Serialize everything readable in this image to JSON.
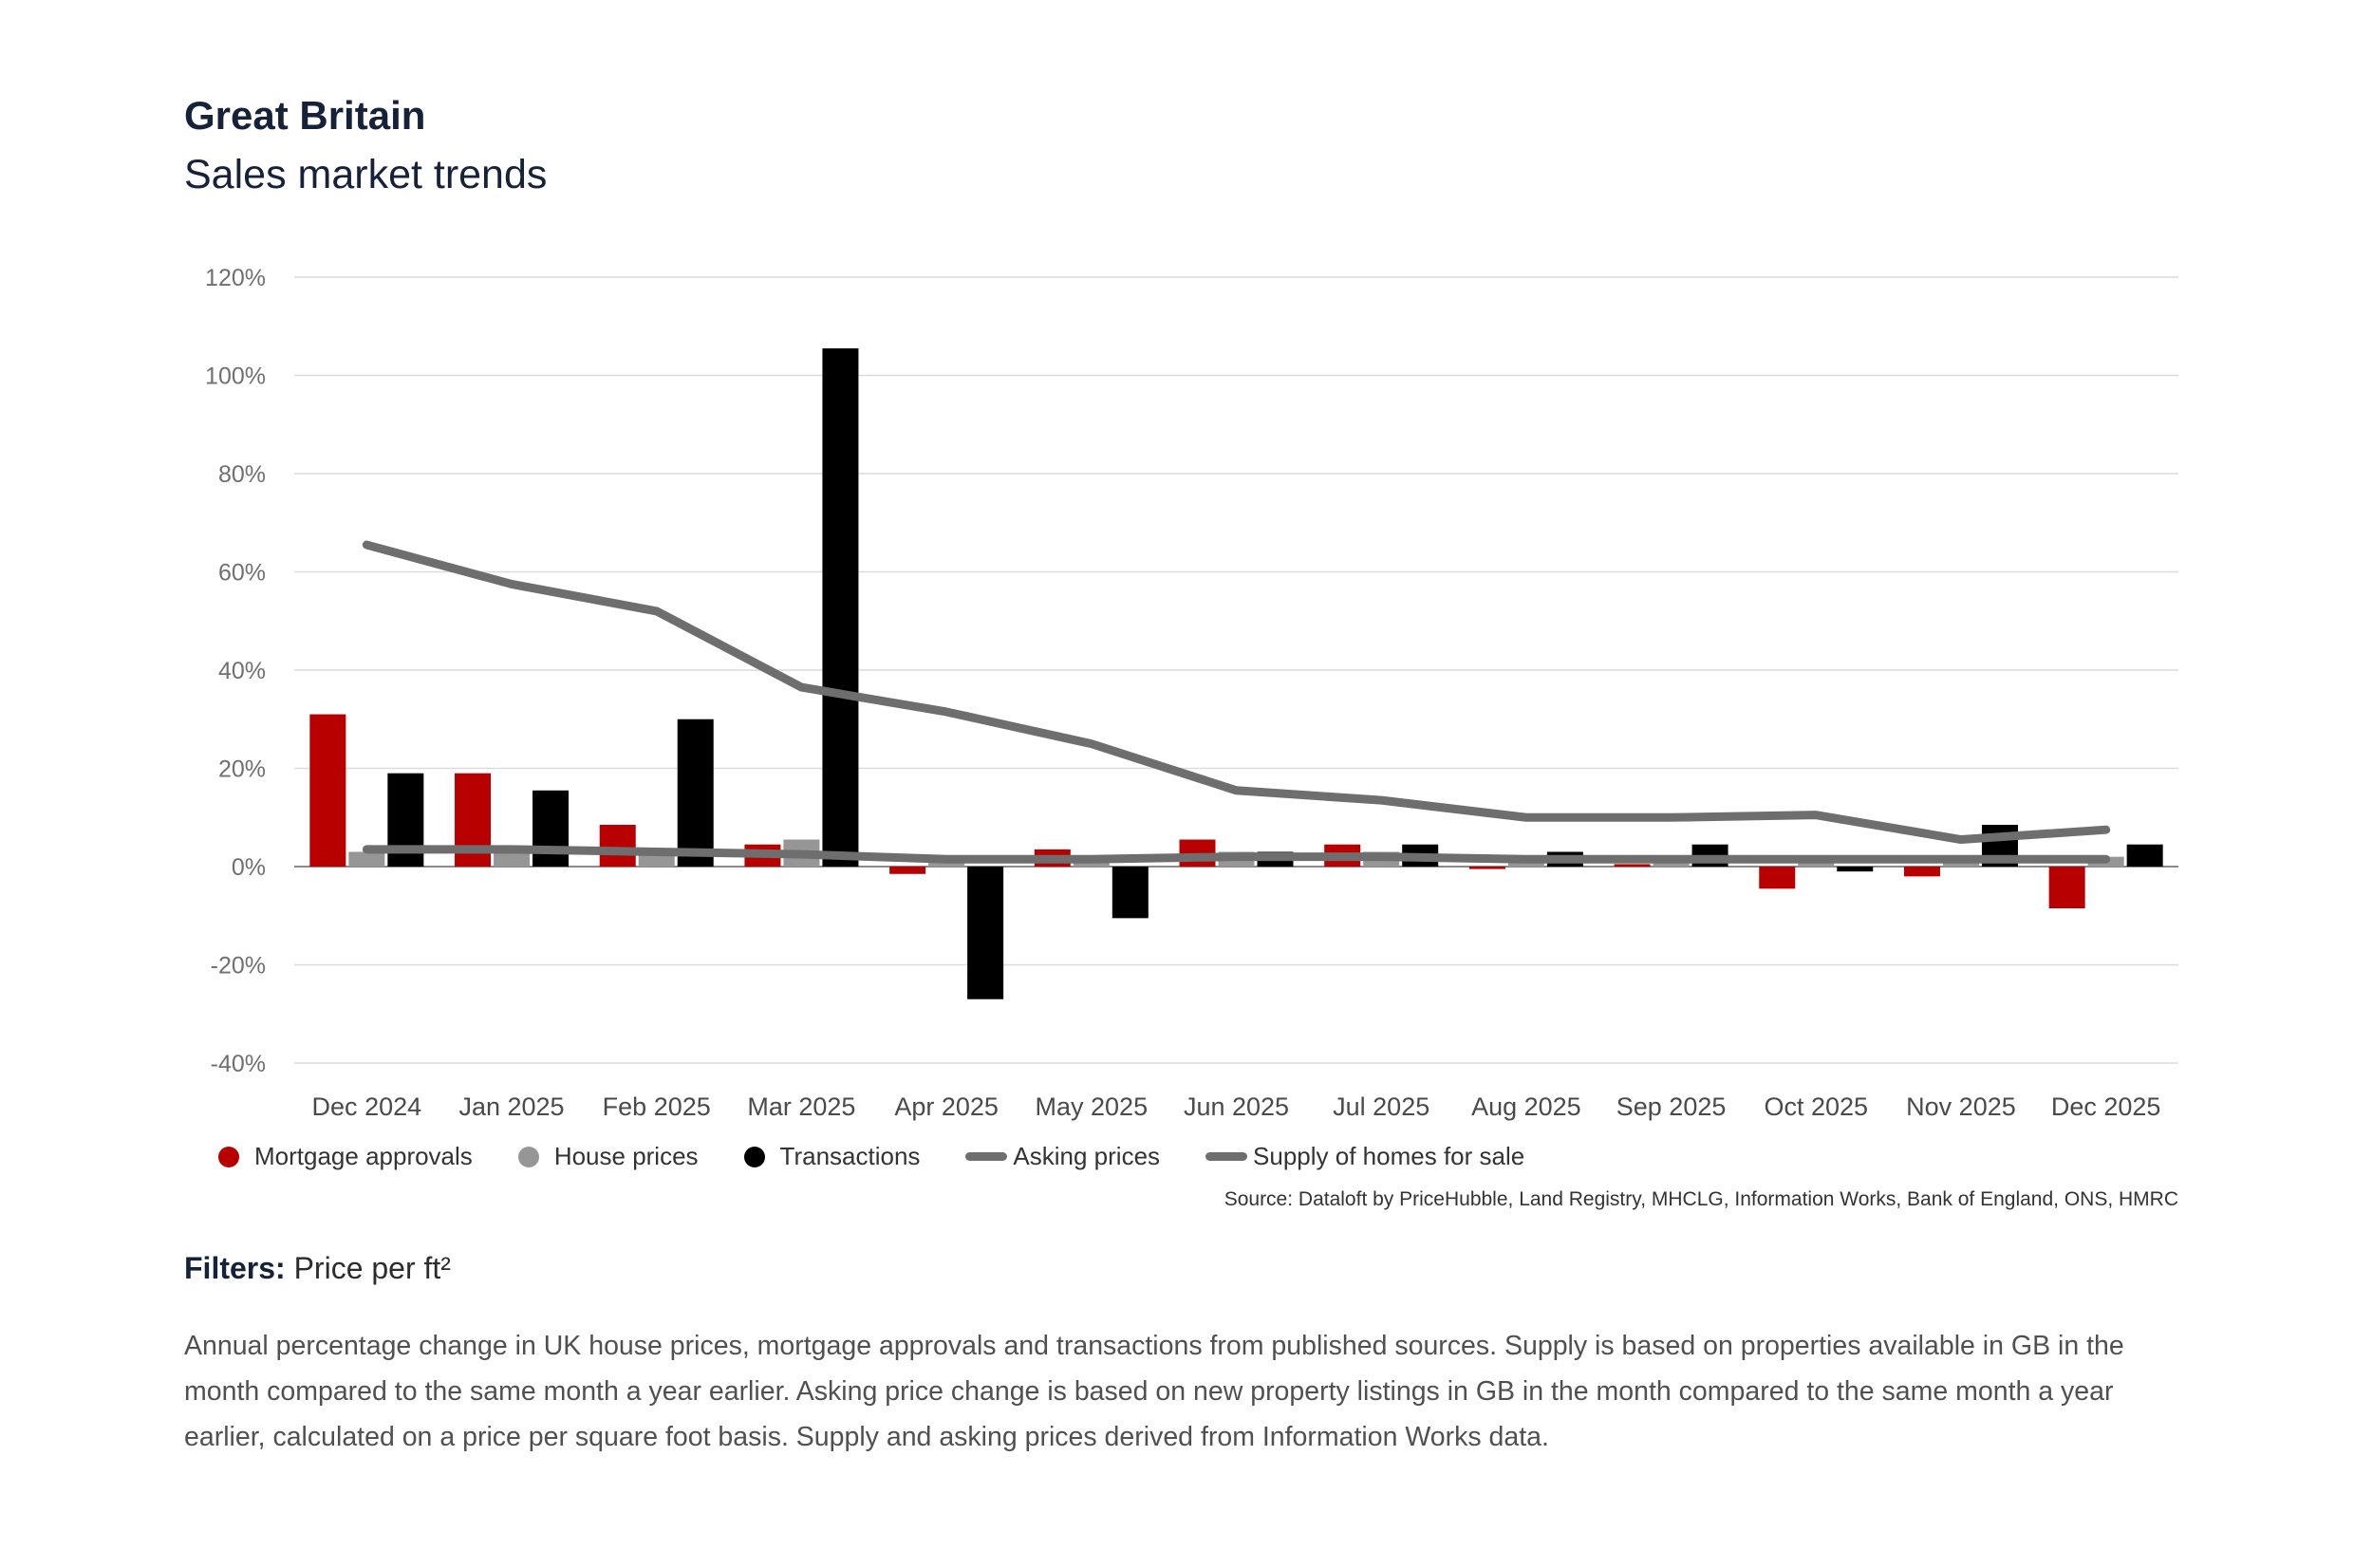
{
  "header": {
    "title": "Great Britain",
    "subtitle": "Sales market trends"
  },
  "chart_data": {
    "type": "bar",
    "categories": [
      "Dec 2024",
      "Jan 2025",
      "Feb 2025",
      "Mar 2025",
      "Apr 2025",
      "May 2025",
      "Jun 2025",
      "Jul 2025",
      "Aug 2025",
      "Sep 2025",
      "Oct 2025",
      "Nov 2025",
      "Dec 2025"
    ],
    "y_ticks": [
      "120%",
      "100%",
      "80%",
      "60%",
      "40%",
      "20%",
      "0%",
      "-20%",
      "-40%"
    ],
    "ylim": [
      -40,
      120
    ],
    "grid": true,
    "legend_position": "bottom-left",
    "series": [
      {
        "name": "Mortgage approvals",
        "kind": "bar",
        "color": "#b80000",
        "values": [
          31,
          19,
          8.5,
          4.5,
          -1.5,
          3.5,
          5.5,
          4.5,
          -0.5,
          0.5,
          -4.5,
          -2,
          -8.5
        ]
      },
      {
        "name": "House prices",
        "kind": "bar",
        "color": "#969696",
        "values": [
          3,
          3.5,
          3,
          5.5,
          1.5,
          1.5,
          3,
          3,
          1.5,
          1.5,
          1.5,
          2,
          2
        ]
      },
      {
        "name": "Transactions",
        "kind": "bar",
        "color": "#000000",
        "values": [
          19,
          15.5,
          30,
          105.5,
          -27,
          -10.5,
          3,
          4.5,
          3,
          4.5,
          -1,
          8.5,
          4.5
        ]
      },
      {
        "name": "Asking prices",
        "kind": "line",
        "color": "#6e6e6e",
        "values": [
          65.5,
          57.5,
          52,
          36.5,
          31.5,
          25,
          15.5,
          13.5,
          10,
          10,
          10.5,
          5.5,
          7.5
        ]
      },
      {
        "name": "Supply of homes for sale",
        "kind": "line",
        "color": "#6e6e6e",
        "values": [
          3.5,
          3.5,
          3,
          2.5,
          1.5,
          1.5,
          2,
          2,
          1.5,
          1.5,
          1.5,
          1.5,
          1.5
        ]
      }
    ]
  },
  "source": "Source: Dataloft by PriceHubble, Land Registry, MHCLG, Information Works, Bank of England, ONS, HMRC",
  "filters": {
    "label": "Filters:",
    "value": "Price per ft²"
  },
  "description": "Annual percentage change in UK house prices, mortgage approvals and transactions from published sources. Supply is based on properties available in GB in the month compared to the same month a year earlier. Asking price change is based on new property listings in GB in the month compared to the same month a year earlier, calculated on a price per square foot basis. Supply and asking prices derived from Information Works data."
}
